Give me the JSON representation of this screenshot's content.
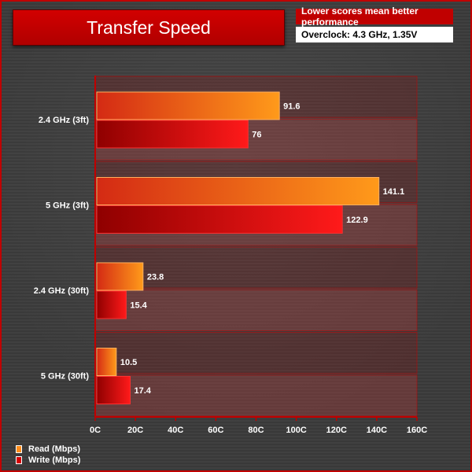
{
  "header": {
    "title": "Transfer Speed",
    "note": "Lower scores mean better performance",
    "subtitle": "Overclock: 4.3 GHz, 1.35V"
  },
  "colors": {
    "read_start": "#d42a14",
    "read_end": "#ff9a1a",
    "write_start": "#8f0000",
    "write_end": "#ff1a1a",
    "accent": "#c00000"
  },
  "chart_data": {
    "type": "bar",
    "orientation": "horizontal",
    "categories": [
      "2.4 GHz (3ft)",
      "5 GHz (3ft)",
      "2.4 GHz (30ft)",
      "5 GHz (30ft)"
    ],
    "series": [
      {
        "name": "Read (Mbps)",
        "values": [
          91.6,
          141.1,
          23.8,
          10.5
        ]
      },
      {
        "name": "Write (Mbps)",
        "values": [
          76,
          122.9,
          15.4,
          17.4
        ]
      }
    ],
    "xlim": [
      0,
      160
    ],
    "xticks": [
      0,
      20,
      40,
      60,
      80,
      100,
      120,
      140,
      160
    ],
    "tick_labels": [
      "0C",
      "20C",
      "40C",
      "60C",
      "80C",
      "100C",
      "120C",
      "140C",
      "160C"
    ],
    "legend_position": "bottom-left",
    "grid": false
  }
}
